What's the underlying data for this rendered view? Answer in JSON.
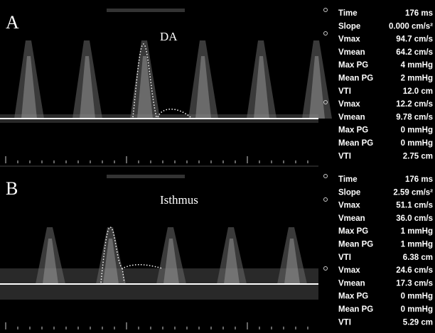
{
  "panels": [
    {
      "label": "A",
      "title": "DA",
      "measurements": [
        [
          "Time",
          "176 ms"
        ],
        [
          "Slope",
          "0.000 cm/s²"
        ],
        [
          "Vmax",
          "94.7 cm/s"
        ],
        [
          "Vmean",
          "64.2 cm/s"
        ],
        [
          "Max PG",
          "4 mmHg"
        ],
        [
          "Mean PG",
          "2 mmHg"
        ],
        [
          "VTI",
          "12.0 cm"
        ],
        [
          "Vmax",
          "12.2 cm/s"
        ],
        [
          "Vmean",
          "9.78 cm/s"
        ],
        [
          "Max PG",
          "0 mmHg"
        ],
        [
          "Mean PG",
          "0 mmHg"
        ],
        [
          "VTI",
          "2.75 cm"
        ]
      ]
    },
    {
      "label": "B",
      "title": "Isthmus",
      "measurements": [
        [
          "Time",
          "176 ms"
        ],
        [
          "Slope",
          "2.59 cm/s²"
        ],
        [
          "Vmax",
          "51.1 cm/s"
        ],
        [
          "Vmean",
          "36.0 cm/s"
        ],
        [
          "Max PG",
          "1 mmHg"
        ],
        [
          "Mean PG",
          "1 mmHg"
        ],
        [
          "VTI",
          "6.38 cm"
        ],
        [
          "Vmax",
          "24.6 cm/s"
        ],
        [
          "Vmean",
          "17.3 cm/s"
        ],
        [
          "Max PG",
          "0 mmHg"
        ],
        [
          "Mean PG",
          "0 mmHg"
        ],
        [
          "VTI",
          "5.29 cm"
        ]
      ]
    }
  ]
}
